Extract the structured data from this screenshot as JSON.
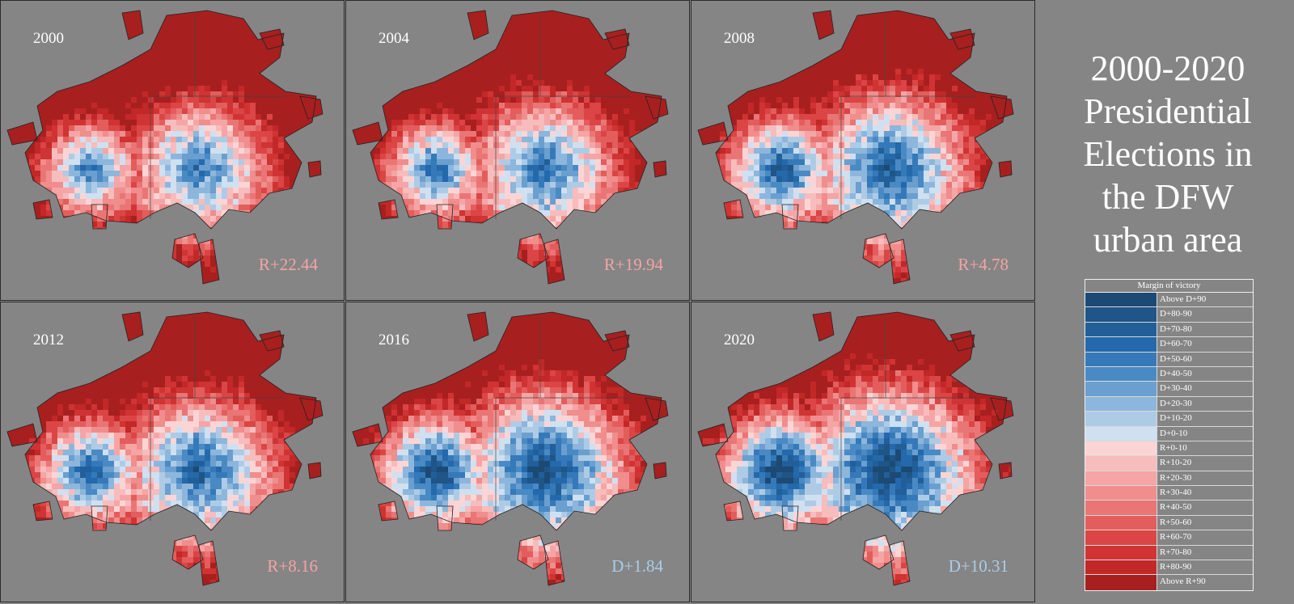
{
  "title": "2000-2020 Presidential Elections in the DFW urban area",
  "title_lines": [
    "2000-2020",
    "Presidential",
    "Elections in",
    "the DFW",
    "urban area"
  ],
  "panels": [
    {
      "year": "2000",
      "margin": "R+22.44",
      "winner": "R",
      "blue_share": 0.22
    },
    {
      "year": "2004",
      "margin": "R+19.94",
      "winner": "R",
      "blue_share": 0.27
    },
    {
      "year": "2008",
      "margin": "R+4.78",
      "winner": "R",
      "blue_share": 0.4
    },
    {
      "year": "2012",
      "margin": "R+8.16",
      "winner": "R",
      "blue_share": 0.36
    },
    {
      "year": "2016",
      "margin": "D+1.84",
      "winner": "D",
      "blue_share": 0.5
    },
    {
      "year": "2020",
      "margin": "D+10.31",
      "winner": "D",
      "blue_share": 0.58
    }
  ],
  "legend": {
    "title": "Margin of victory",
    "items": [
      {
        "label": "Above D+90",
        "color": "#1c4a75"
      },
      {
        "label": "D+80-90",
        "color": "#1f5587"
      },
      {
        "label": "D+70-80",
        "color": "#225f99"
      },
      {
        "label": "D+60-70",
        "color": "#2469ab"
      },
      {
        "label": "D+50-60",
        "color": "#3579b8"
      },
      {
        "label": "D+40-50",
        "color": "#4a8ac4"
      },
      {
        "label": "D+30-40",
        "color": "#6a9fcf"
      },
      {
        "label": "D+20-30",
        "color": "#8cb6dc"
      },
      {
        "label": "D+10-20",
        "color": "#aecbe6"
      },
      {
        "label": "D+0-10",
        "color": "#cfe0f0"
      },
      {
        "label": "R+0-10",
        "color": "#fbd5d5"
      },
      {
        "label": "R+10-20",
        "color": "#f7bcbc"
      },
      {
        "label": "R+20-30",
        "color": "#f5a5a5"
      },
      {
        "label": "R+30-40",
        "color": "#f08d8d"
      },
      {
        "label": "R+40-50",
        "color": "#ea7575"
      },
      {
        "label": "R+50-60",
        "color": "#e35d5d"
      },
      {
        "label": "R+60-70",
        "color": "#db4545"
      },
      {
        "label": "R+70-80",
        "color": "#d03333"
      },
      {
        "label": "R+80-90",
        "color": "#c22828"
      },
      {
        "label": "Above R+90",
        "color": "#a81f1f"
      }
    ]
  },
  "colors": {
    "background": "#858585",
    "rep_label": "#f4a4a4",
    "dem_label": "#a9cdea"
  }
}
